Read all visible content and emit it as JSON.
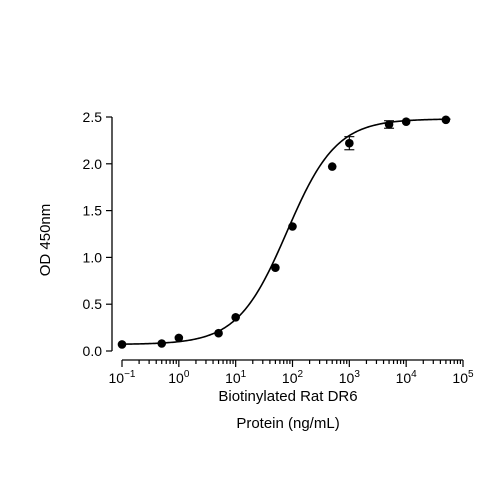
{
  "chart_data": {
    "type": "scatter",
    "title": "",
    "xlabel_line1": "Biotinylated Rat DR6",
    "xlabel_line2": "Protein (ng/mL)",
    "ylabel": "OD 450nm",
    "x_scale": "log",
    "xlim": [
      0.1,
      100000
    ],
    "ylim": [
      0,
      2.5
    ],
    "x_ticks": [
      {
        "value": 0.1,
        "base": "10",
        "exp": "-1"
      },
      {
        "value": 1,
        "base": "10",
        "exp": "0"
      },
      {
        "value": 10,
        "base": "10",
        "exp": "1"
      },
      {
        "value": 100,
        "base": "10",
        "exp": "2"
      },
      {
        "value": 1000,
        "base": "10",
        "exp": "3"
      },
      {
        "value": 10000,
        "base": "10",
        "exp": "4"
      },
      {
        "value": 100000,
        "base": "10",
        "exp": "5"
      }
    ],
    "y_ticks": [
      "0.0",
      "0.5",
      "1.0",
      "1.5",
      "2.0",
      "2.5"
    ],
    "grid": false,
    "series": [
      {
        "points": [
          {
            "x": 0.1,
            "y": 0.07
          },
          {
            "x": 0.5,
            "y": 0.08
          },
          {
            "x": 1,
            "y": 0.14
          },
          {
            "x": 5,
            "y": 0.19
          },
          {
            "x": 10,
            "y": 0.36
          },
          {
            "x": 50,
            "y": 0.89
          },
          {
            "x": 100,
            "y": 1.33
          },
          {
            "x": 500,
            "y": 1.97
          },
          {
            "x": 1000,
            "y": 2.22,
            "err": 0.07
          },
          {
            "x": 5000,
            "y": 2.42,
            "err": 0.04
          },
          {
            "x": 10000,
            "y": 2.45
          },
          {
            "x": 50000,
            "y": 2.47
          }
        ],
        "fit": {
          "model": "4PL",
          "bottom": 0.07,
          "top": 2.48,
          "ec50": 80,
          "hill": 1.0
        }
      }
    ]
  }
}
